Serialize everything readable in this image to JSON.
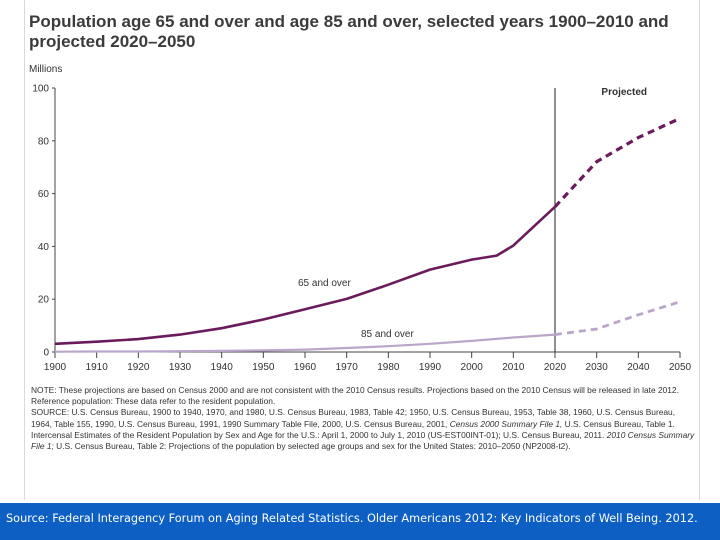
{
  "chart_data": {
    "type": "line",
    "title": "Population age 65 and over and age 85 and over, selected years 1900–2010 and projected 2020–2050",
    "ylabel": "Millions",
    "xlabel": "",
    "x_ticks": [
      1900,
      1910,
      1920,
      1930,
      1940,
      1950,
      1960,
      1970,
      1980,
      1990,
      2000,
      2010,
      2020,
      2030,
      2040,
      2050
    ],
    "y_ticks": [
      0,
      20,
      40,
      60,
      80,
      100
    ],
    "xlim": [
      1900,
      2050
    ],
    "ylim": [
      0,
      100
    ],
    "grid": false,
    "projection_start": 2020,
    "projection_label": "Projected",
    "series": [
      {
        "name": "65 and over",
        "color": "#6b1a5c",
        "x": [
          1900,
          1910,
          1920,
          1930,
          1940,
          1950,
          1960,
          1970,
          1980,
          1990,
          2000,
          2006,
          2010,
          2020,
          2030,
          2040,
          2050
        ],
        "y": [
          3.1,
          3.9,
          4.9,
          6.6,
          9.0,
          12.3,
          16.2,
          20.1,
          25.5,
          31.2,
          35.0,
          36.5,
          40.3,
          55.0,
          72.1,
          81.2,
          88.5
        ]
      },
      {
        "name": "85 and over",
        "color": "#b9a6c9",
        "x": [
          1900,
          1910,
          1920,
          1930,
          1940,
          1950,
          1960,
          1970,
          1980,
          1990,
          2000,
          2010,
          2020,
          2030,
          2040,
          2050
        ],
        "y": [
          0.1,
          0.2,
          0.2,
          0.3,
          0.4,
          0.6,
          0.9,
          1.5,
          2.2,
          3.1,
          4.2,
          5.5,
          6.6,
          8.7,
          14.1,
          19.0
        ]
      }
    ]
  },
  "notes": {
    "note": "NOTE: These projections are based on Census 2000 and are not consistent with the 2010 Census results. Projections based on the 2010 Census will be released in late 2012.",
    "reference": "Reference population: These data refer to the resident population.",
    "source_a": "SOURCE: U.S. Census Bureau, 1900 to 1940, 1970, and 1980, U.S. Census Bureau, 1983, Table 42; 1950, U.S. Census Bureau, 1953, Table 38, 1960, U.S. Census Bureau, 1964, Table 155, 1990, U.S. Census Bureau, 1991, 1990 Summary Table File, 2000, U.S. Census Bureau, 2001,",
    "source_b_ital": "Census 2000 Summary File 1,",
    "source_b": " U.S. Census Bureau, Table 1. Intercensal Estimates of the Resident Population by Sex and Age for the U.S.: April 1, 2000 to July 1, 2010 (US-EST00INT-01); U.S. Census Bureau, 2011.",
    "source_c_ital": "2010 Census Summary File 1;",
    "source_c": " U.S. Census Bureau, Table 2: Projections of the population by selected age groups and sex for the United States: 2010–2050 (NP2008-t2)."
  },
  "footer": {
    "source": "Source: Federal Interagency Forum on Aging Related Statistics. Older Americans 2012: Key Indicators of Well Being. 2012."
  }
}
